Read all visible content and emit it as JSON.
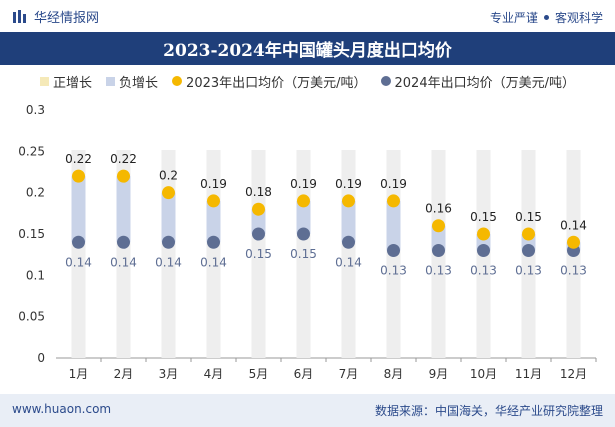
{
  "header": {
    "brand_name": "华经情报网",
    "tagline_left": "专业严谨",
    "tagline_right": "客观科学"
  },
  "colors": {
    "title_bg": "#1f3f7a",
    "pos_bar": "#f5e9b8",
    "neg_bar": "#c9d3e8",
    "dot_2023": "#f5b800",
    "dot_2024": "#5e6e93"
  },
  "legend": {
    "pos": "正增长",
    "neg": "负增长",
    "s2023": "2023年出口均价（万美元/吨）",
    "s2024": "2024年出口均价（万美元/吨）"
  },
  "footer": {
    "url": "www.huaon.com",
    "source": "数据来源：中国海关，华经产业研究院整理"
  },
  "chart_data": {
    "type": "dot",
    "title": "2023-2024年中国罐头月度出口均价",
    "categories": [
      "1月",
      "2月",
      "3月",
      "4月",
      "5月",
      "6月",
      "7月",
      "8月",
      "9月",
      "10月",
      "11月",
      "12月"
    ],
    "series": [
      {
        "name": "2023年出口均价（万美元/吨）",
        "values": [
          0.22,
          0.22,
          0.2,
          0.19,
          0.18,
          0.19,
          0.19,
          0.19,
          0.16,
          0.15,
          0.15,
          0.14
        ]
      },
      {
        "name": "2024年出口均价（万美元/吨）",
        "values": [
          0.14,
          0.14,
          0.14,
          0.14,
          0.15,
          0.15,
          0.14,
          0.13,
          0.13,
          0.13,
          0.13,
          0.13
        ]
      }
    ],
    "ylim": [
      0,
      0.3
    ],
    "yticks": [
      0,
      0.05,
      0.1,
      0.15,
      0.2,
      0.25,
      0.3
    ],
    "grid": false
  }
}
